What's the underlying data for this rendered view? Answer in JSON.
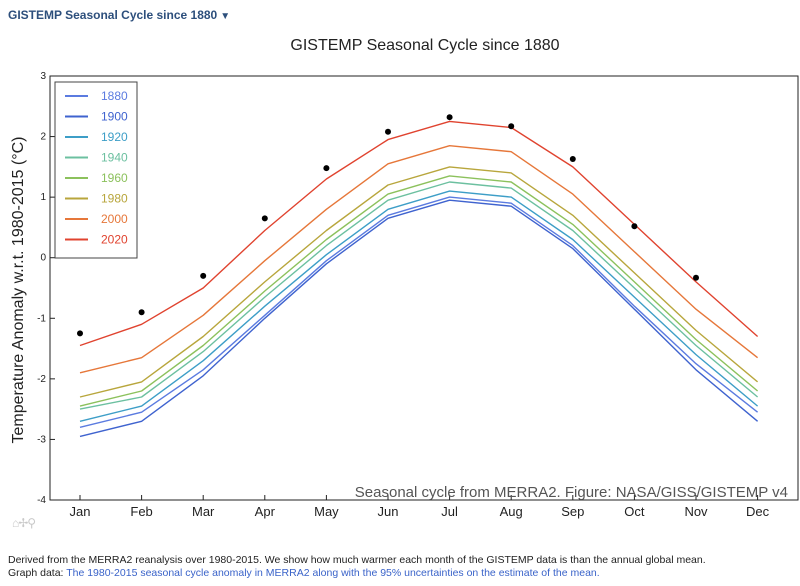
{
  "selector": {
    "label": "GISTEMP Seasonal Cycle since 1880",
    "caret": "▼"
  },
  "toolbar": {
    "icons": "⌂✢⚲"
  },
  "caption": {
    "line1": "Derived from the MERRA2 reanalysis over 1980-2015. We show how much warmer each month of the GISTEMP data is than the annual global mean.",
    "line2_prefix": "Graph data: ",
    "line2_link": "The 1980-2015 seasonal cycle anomaly in MERRA2 along with the 95% uncertainties on the estimate of the mean."
  },
  "chart_data": {
    "type": "line",
    "title": "GISTEMP Seasonal Cycle since 1880",
    "annotation": "Seasonal cycle from MERRA2. Figure: NASA/GISS/GISTEMP v4",
    "xlabel": "",
    "ylabel": "Temperature Anomaly w.r.t. 1980-2015 (°C)",
    "categories": [
      "Jan",
      "Feb",
      "Mar",
      "Apr",
      "May",
      "Jun",
      "Jul",
      "Aug",
      "Sep",
      "Oct",
      "Nov",
      "Dec"
    ],
    "ylim": [
      -4,
      3
    ],
    "yticks": [
      -4,
      -3,
      -2,
      -1,
      0,
      1,
      2,
      3
    ],
    "legend_position": "top-left",
    "legend": [
      {
        "name": "1880",
        "color": "#5b7be0"
      },
      {
        "name": "1900",
        "color": "#3f63cf"
      },
      {
        "name": "1920",
        "color": "#3d9ec7"
      },
      {
        "name": "1940",
        "color": "#6cc0a0"
      },
      {
        "name": "1960",
        "color": "#8cc15c"
      },
      {
        "name": "1980",
        "color": "#b8a63c"
      },
      {
        "name": "2000",
        "color": "#e6773a"
      },
      {
        "name": "2020",
        "color": "#e0432f"
      }
    ],
    "series": [
      {
        "name": "1880",
        "color": "#5b7be0",
        "values": [
          -2.8,
          -2.55,
          -1.85,
          -0.95,
          -0.05,
          0.7,
          1.0,
          0.9,
          0.2,
          -0.8,
          -1.75,
          -2.55
        ]
      },
      {
        "name": "1900",
        "color": "#3f63cf",
        "values": [
          -2.95,
          -2.7,
          -1.95,
          -1.0,
          -0.1,
          0.65,
          0.95,
          0.85,
          0.15,
          -0.85,
          -1.85,
          -2.7
        ]
      },
      {
        "name": "1920",
        "color": "#3d9ec7",
        "values": [
          -2.7,
          -2.45,
          -1.7,
          -0.8,
          0.05,
          0.8,
          1.1,
          1.0,
          0.3,
          -0.65,
          -1.6,
          -2.45
        ]
      },
      {
        "name": "1940",
        "color": "#6cc0a0",
        "values": [
          -2.5,
          -2.3,
          -1.55,
          -0.65,
          0.2,
          0.95,
          1.25,
          1.15,
          0.45,
          -0.5,
          -1.45,
          -2.3
        ]
      },
      {
        "name": "1960",
        "color": "#8cc15c",
        "values": [
          -2.45,
          -2.2,
          -1.45,
          -0.55,
          0.3,
          1.05,
          1.35,
          1.25,
          0.55,
          -0.4,
          -1.35,
          -2.2
        ]
      },
      {
        "name": "1980",
        "color": "#b8a63c",
        "values": [
          -2.3,
          -2.05,
          -1.3,
          -0.4,
          0.45,
          1.2,
          1.5,
          1.4,
          0.7,
          -0.25,
          -1.2,
          -2.05
        ]
      },
      {
        "name": "2000",
        "color": "#e6773a",
        "values": [
          -1.9,
          -1.65,
          -0.95,
          -0.05,
          0.8,
          1.55,
          1.85,
          1.75,
          1.05,
          0.1,
          -0.85,
          -1.65
        ]
      },
      {
        "name": "2020",
        "color": "#e0432f",
        "values": [
          -1.45,
          -1.1,
          -0.5,
          0.45,
          1.3,
          1.95,
          2.25,
          2.15,
          1.5,
          0.55,
          -0.4,
          -1.3
        ]
      }
    ],
    "markers": {
      "name": "",
      "color": "#000000",
      "values": [
        -1.25,
        -0.9,
        -0.3,
        0.65,
        1.48,
        2.08,
        2.32,
        2.17,
        1.63,
        0.52,
        -0.33
      ]
    }
  }
}
